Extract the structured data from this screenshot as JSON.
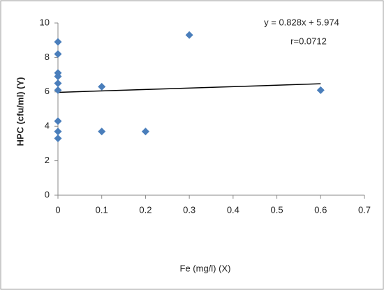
{
  "chart_data": {
    "type": "scatter",
    "xlabel": "Fe (mg/l) (X)",
    "ylabel": "HPC (cfu/ml) (Y)",
    "annotations": [
      "y = 0.828x + 5.974",
      "r=0.0712"
    ],
    "series": [
      {
        "color": "#4a7ebb",
        "x": [
          0,
          0,
          0,
          0,
          0,
          0,
          0,
          0,
          0,
          0.1,
          0.1,
          0.2,
          0.3,
          0.6
        ],
        "values": [
          8.9,
          8.2,
          7.1,
          6.9,
          6.5,
          6.1,
          4.3,
          3.7,
          3.3,
          6.3,
          3.7,
          3.7,
          9.3,
          6.1
        ]
      }
    ],
    "trendline": {
      "color": "#000000",
      "x": [
        0,
        0.6
      ],
      "values": [
        5.974,
        6.4708
      ]
    },
    "xlim": [
      0,
      0.7
    ],
    "xticks": [
      0,
      0.1,
      0.2,
      0.3,
      0.4,
      0.5,
      0.6,
      0.7
    ],
    "ylim": [
      0,
      10
    ],
    "yticks": [
      0,
      2,
      4,
      6,
      8,
      10
    ]
  }
}
